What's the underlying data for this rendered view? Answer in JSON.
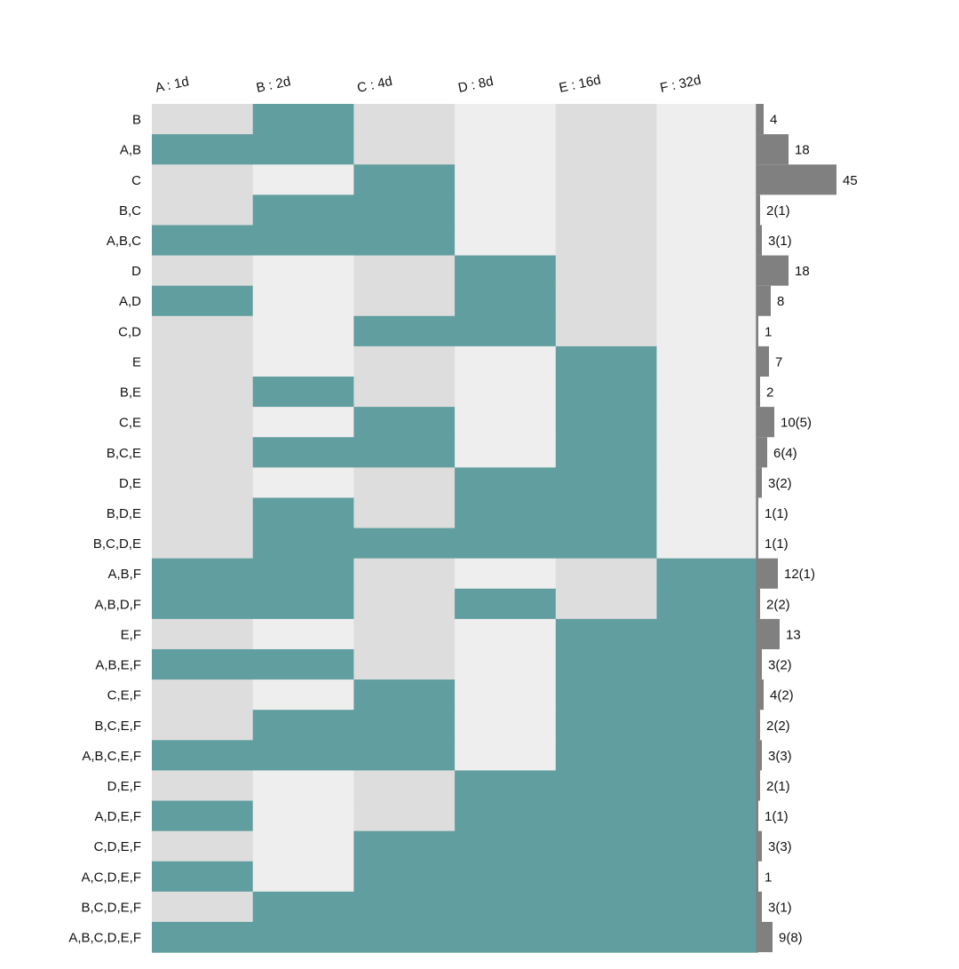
{
  "chart_data": {
    "type": "heatmap",
    "title": "",
    "xlabel": "",
    "ylabel": "",
    "columns": [
      "A : 1d",
      "B : 2d",
      "C : 4d",
      "D : 8d",
      "E : 16d",
      "F : 32d"
    ],
    "rows": [
      {
        "label": "B",
        "members": [
          0,
          1,
          0,
          0,
          0,
          0
        ],
        "count": 4,
        "count_label": "4"
      },
      {
        "label": "A,B",
        "members": [
          1,
          1,
          0,
          0,
          0,
          0
        ],
        "count": 18,
        "count_label": "18"
      },
      {
        "label": "C",
        "members": [
          0,
          0,
          1,
          0,
          0,
          0
        ],
        "count": 45,
        "count_label": "45"
      },
      {
        "label": "B,C",
        "members": [
          0,
          1,
          1,
          0,
          0,
          0
        ],
        "count": 2,
        "count_label": "2(1)"
      },
      {
        "label": "A,B,C",
        "members": [
          1,
          1,
          1,
          0,
          0,
          0
        ],
        "count": 3,
        "count_label": "3(1)"
      },
      {
        "label": "D",
        "members": [
          0,
          0,
          0,
          1,
          0,
          0
        ],
        "count": 18,
        "count_label": "18"
      },
      {
        "label": "A,D",
        "members": [
          1,
          0,
          0,
          1,
          0,
          0
        ],
        "count": 8,
        "count_label": "8"
      },
      {
        "label": "C,D",
        "members": [
          0,
          0,
          1,
          1,
          0,
          0
        ],
        "count": 1,
        "count_label": "1"
      },
      {
        "label": "E",
        "members": [
          0,
          0,
          0,
          0,
          1,
          0
        ],
        "count": 7,
        "count_label": "7"
      },
      {
        "label": "B,E",
        "members": [
          0,
          1,
          0,
          0,
          1,
          0
        ],
        "count": 2,
        "count_label": "2"
      },
      {
        "label": "C,E",
        "members": [
          0,
          0,
          1,
          0,
          1,
          0
        ],
        "count": 10,
        "count_label": "10(5)"
      },
      {
        "label": "B,C,E",
        "members": [
          0,
          1,
          1,
          0,
          1,
          0
        ],
        "count": 6,
        "count_label": "6(4)"
      },
      {
        "label": "D,E",
        "members": [
          0,
          0,
          0,
          1,
          1,
          0
        ],
        "count": 3,
        "count_label": "3(2)"
      },
      {
        "label": "B,D,E",
        "members": [
          0,
          1,
          0,
          1,
          1,
          0
        ],
        "count": 1,
        "count_label": "1(1)"
      },
      {
        "label": "B,C,D,E",
        "members": [
          0,
          1,
          1,
          1,
          1,
          0
        ],
        "count": 1,
        "count_label": "1(1)"
      },
      {
        "label": "A,B,F",
        "members": [
          1,
          1,
          0,
          0,
          0,
          1
        ],
        "count": 12,
        "count_label": "12(1)"
      },
      {
        "label": "A,B,D,F",
        "members": [
          1,
          1,
          0,
          1,
          0,
          1
        ],
        "count": 2,
        "count_label": "2(2)"
      },
      {
        "label": "E,F",
        "members": [
          0,
          0,
          0,
          0,
          1,
          1
        ],
        "count": 13,
        "count_label": "13"
      },
      {
        "label": "A,B,E,F",
        "members": [
          1,
          1,
          0,
          0,
          1,
          1
        ],
        "count": 3,
        "count_label": "3(2)"
      },
      {
        "label": "C,E,F",
        "members": [
          0,
          0,
          1,
          0,
          1,
          1
        ],
        "count": 4,
        "count_label": "4(2)"
      },
      {
        "label": "B,C,E,F",
        "members": [
          0,
          1,
          1,
          0,
          1,
          1
        ],
        "count": 2,
        "count_label": "2(2)"
      },
      {
        "label": "A,B,C,E,F",
        "members": [
          1,
          1,
          1,
          0,
          1,
          1
        ],
        "count": 3,
        "count_label": "3(3)"
      },
      {
        "label": "D,E,F",
        "members": [
          0,
          0,
          0,
          1,
          1,
          1
        ],
        "count": 2,
        "count_label": "2(1)"
      },
      {
        "label": "A,D,E,F",
        "members": [
          1,
          0,
          0,
          1,
          1,
          1
        ],
        "count": 1,
        "count_label": "1(1)"
      },
      {
        "label": "C,D,E,F",
        "members": [
          0,
          0,
          1,
          1,
          1,
          1
        ],
        "count": 3,
        "count_label": "3(3)"
      },
      {
        "label": "A,C,D,E,F",
        "members": [
          1,
          0,
          1,
          1,
          1,
          1
        ],
        "count": 1,
        "count_label": "1"
      },
      {
        "label": "B,C,D,E,F",
        "members": [
          0,
          1,
          1,
          1,
          1,
          1
        ],
        "count": 3,
        "count_label": "3(1)"
      },
      {
        "label": "A,B,C,D,E,F",
        "members": [
          1,
          1,
          1,
          1,
          1,
          1
        ],
        "count": 9,
        "count_label": "9(8)"
      }
    ],
    "colors": {
      "member": "#619e9f",
      "nonmember_dark": "#dddddd",
      "nonmember_light": "#eeeeee",
      "bar": "#808080",
      "bar_axis": "#808080"
    }
  }
}
